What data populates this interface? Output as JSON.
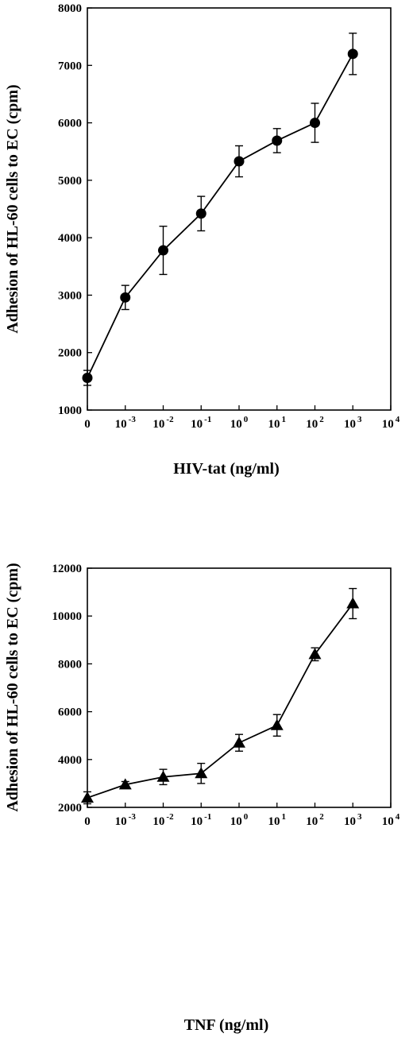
{
  "chart_data": [
    {
      "type": "line",
      "title": "",
      "xlabel": "HIV-tat (ng/ml)",
      "ylabel": "Adhesion of HL-60 cells to EC (cpm)",
      "x_scale": "log (with 0 at origin)",
      "x_ticks": [
        {
          "base": "0",
          "exp": ""
        },
        {
          "base": "10",
          "exp": "-3"
        },
        {
          "base": "10",
          "exp": "-2"
        },
        {
          "base": "10",
          "exp": "-1"
        },
        {
          "base": "10",
          "exp": "0"
        },
        {
          "base": "10",
          "exp": "1"
        },
        {
          "base": "10",
          "exp": "2"
        },
        {
          "base": "10",
          "exp": "3"
        },
        {
          "base": "10",
          "exp": "4"
        }
      ],
      "ylim": [
        1000,
        8000
      ],
      "y_ticks": [
        1000,
        2000,
        3000,
        4000,
        5000,
        6000,
        7000,
        8000
      ],
      "marker": "circle",
      "grid": false,
      "series": [
        {
          "x": [
            "0",
            "10^-3",
            "10^-2",
            "10^-1",
            "10^0",
            "10^1",
            "10^2",
            "10^3"
          ],
          "y": [
            1560,
            2960,
            3780,
            4420,
            5330,
            5690,
            6000,
            7200
          ],
          "error": [
            130,
            210,
            420,
            300,
            270,
            210,
            340,
            360
          ]
        }
      ]
    },
    {
      "type": "line",
      "title": "",
      "xlabel": "TNF (ng/ml)",
      "ylabel": "Adhesion of HL-60 cells to EC (cpm)",
      "x_scale": "log (with 0 at origin)",
      "x_ticks": [
        {
          "base": "0",
          "exp": ""
        },
        {
          "base": "10",
          "exp": "-3"
        },
        {
          "base": "10",
          "exp": "-2"
        },
        {
          "base": "10",
          "exp": "-1"
        },
        {
          "base": "10",
          "exp": "0"
        },
        {
          "base": "10",
          "exp": "1"
        },
        {
          "base": "10",
          "exp": "2"
        },
        {
          "base": "10",
          "exp": "3"
        },
        {
          "base": "10",
          "exp": "4"
        }
      ],
      "ylim": [
        2000,
        12000
      ],
      "y_ticks": [
        2000,
        4000,
        6000,
        8000,
        10000,
        12000
      ],
      "marker": "triangle",
      "grid": false,
      "series": [
        {
          "x": [
            "0",
            "10^-3",
            "10^-2",
            "10^-1",
            "10^0",
            "10^1",
            "10^2",
            "10^3"
          ],
          "y": [
            2400,
            2950,
            3270,
            3420,
            4700,
            5430,
            8400,
            10520
          ],
          "error": [
            250,
            130,
            320,
            420,
            350,
            450,
            270,
            630
          ]
        }
      ]
    }
  ]
}
